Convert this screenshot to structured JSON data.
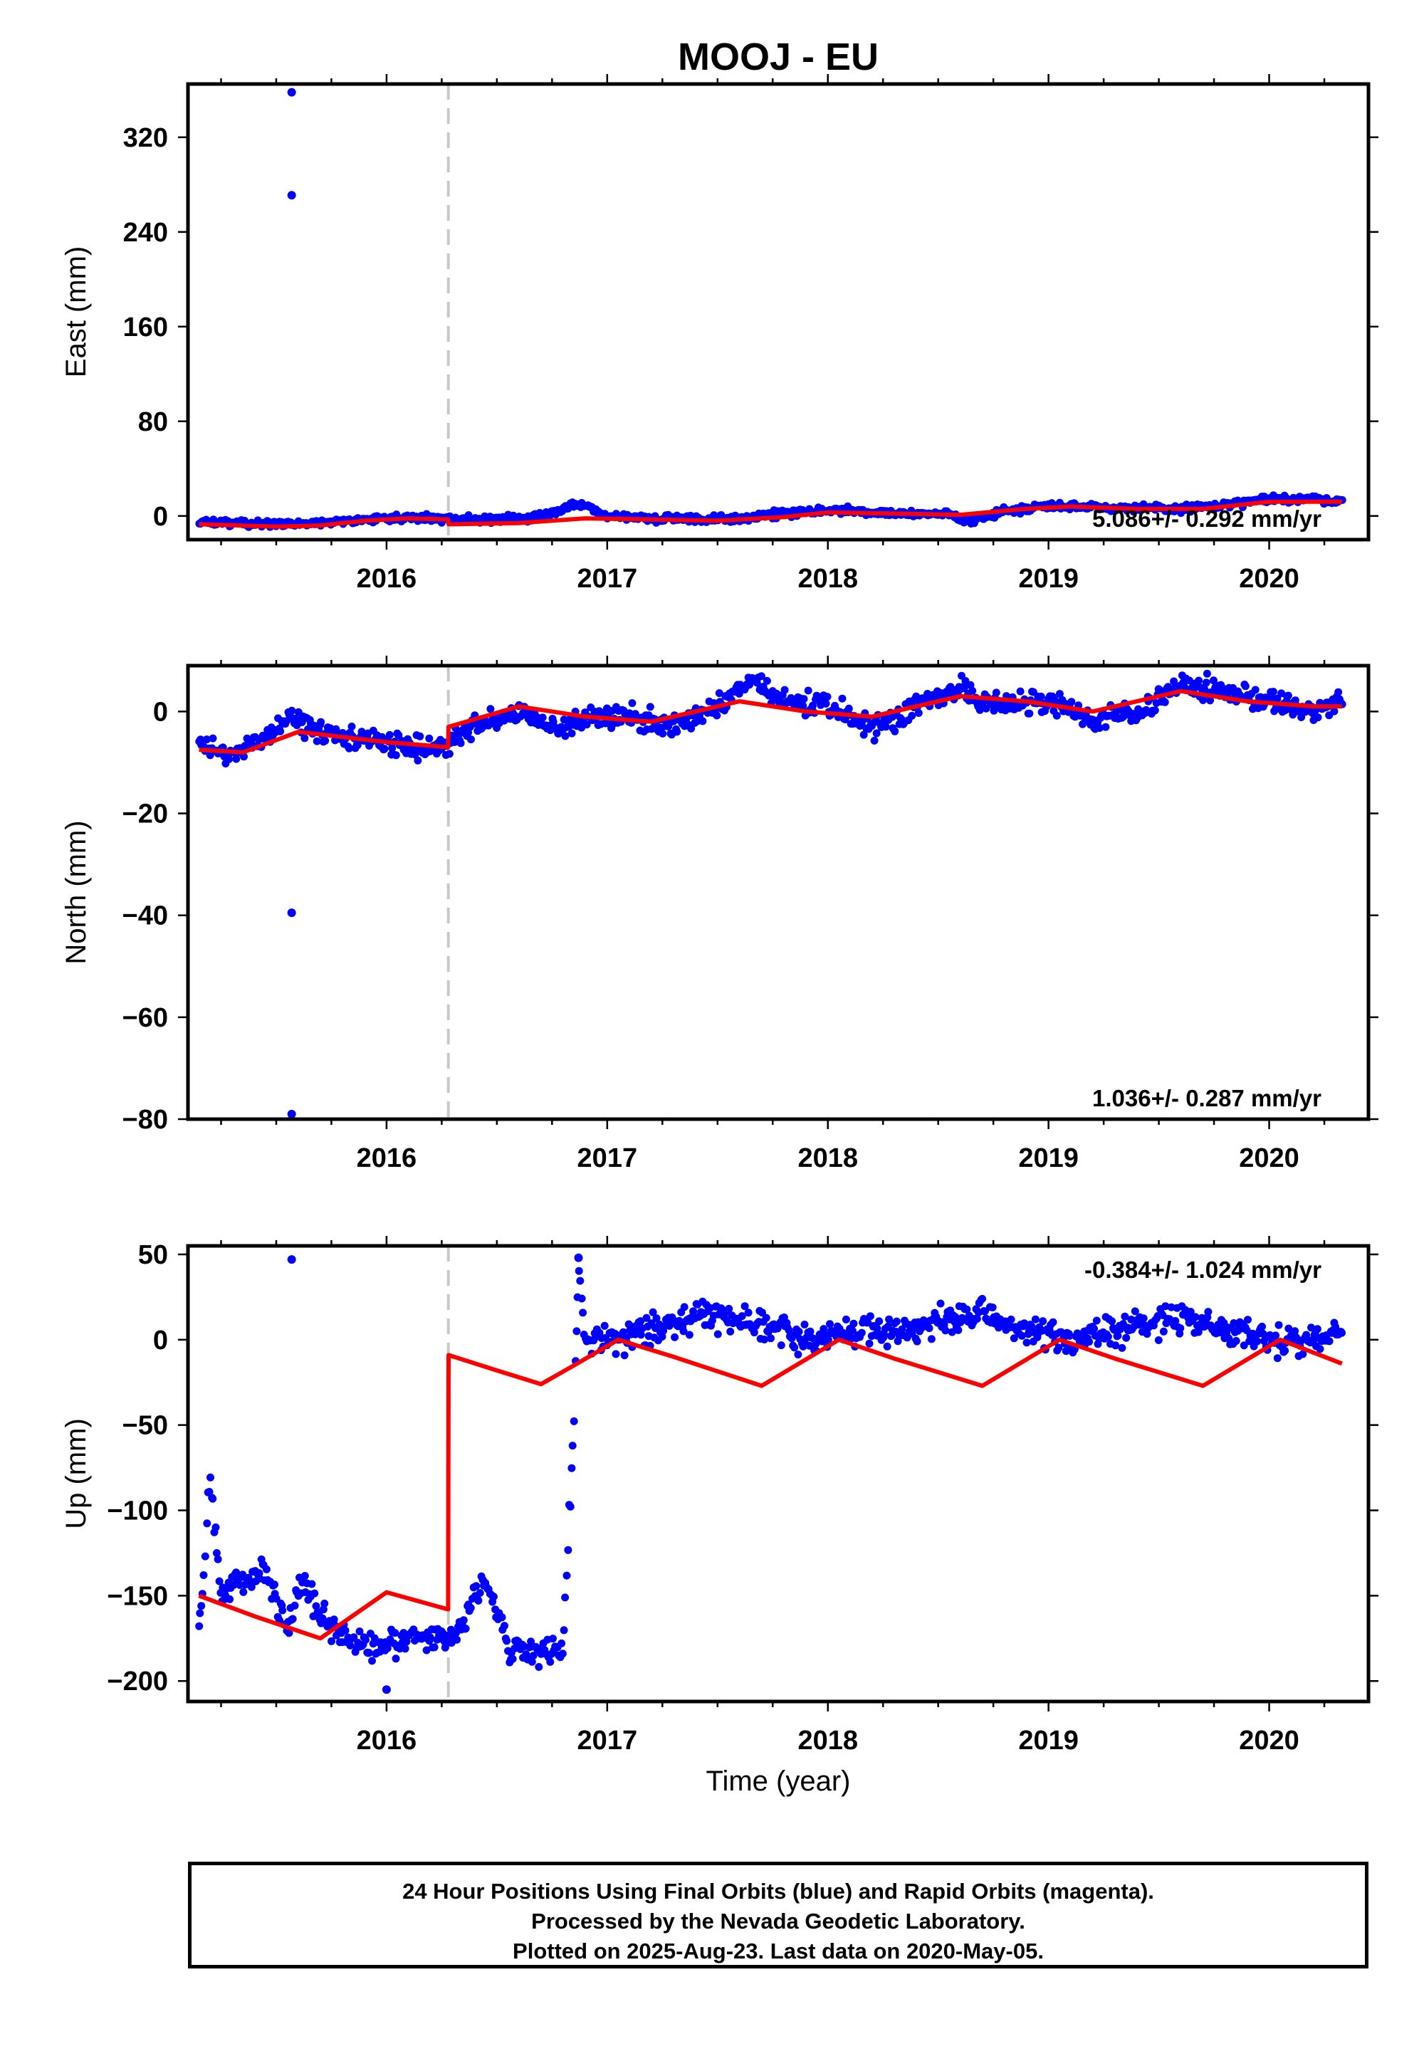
{
  "chart_data": [
    {
      "type": "scatter",
      "title": "MOOJ - EU",
      "ylabel": "East (mm)",
      "xlim": [
        2015.1,
        2020.45
      ],
      "ylim": [
        -20,
        365
      ],
      "xticks": [
        2016,
        2017,
        2018,
        2019,
        2020
      ],
      "yticks": [
        0,
        80,
        160,
        240,
        320
      ],
      "rate_label": "5.086+/- 0.292 mm/yr",
      "offset_x": 2016.28,
      "series": [
        {
          "color": "#0000ff",
          "x": [
            2015.15,
            2015.3,
            2015.5,
            2015.7,
            2015.9,
            2016.1,
            2016.25,
            2016.45,
            2016.65,
            2016.8,
            2016.84,
            2016.88,
            2017.0,
            2017.2,
            2017.4,
            2017.6,
            2017.8,
            2018.0,
            2018.15,
            2018.35,
            2018.55,
            2018.65,
            2018.8,
            2019.0,
            2019.2,
            2019.4,
            2019.6,
            2019.8,
            2020.0,
            2020.2,
            2020.33
          ],
          "y": [
            -5,
            -6,
            -7,
            -6,
            -3,
            -1,
            -2,
            -3,
            -2,
            5,
            10,
            10,
            0,
            -2,
            -3,
            -2,
            2,
            5,
            4,
            2,
            1,
            -4,
            4,
            9,
            8,
            6,
            6,
            9,
            14,
            15,
            12
          ]
        },
        {
          "color": "#0000ff",
          "x": [
            2015.57,
            2015.57
          ],
          "y": [
            358,
            271
          ]
        }
      ],
      "model": {
        "color": "#ff0000",
        "x": [
          2015.15,
          2015.5,
          2015.7,
          2015.9,
          2016.1,
          2016.279,
          2016.281,
          2016.6,
          2016.9,
          2017.2,
          2017.5,
          2017.8,
          2018.0,
          2018.3,
          2018.6,
          2018.9,
          2019.1,
          2019.4,
          2019.7,
          2020.0,
          2020.33
        ],
        "y": [
          -7,
          -9,
          -8,
          -4,
          -2,
          -3,
          -7,
          -6,
          -2,
          -3,
          -4,
          -1,
          3,
          2,
          1,
          6,
          8,
          6,
          6,
          12,
          12
        ]
      }
    },
    {
      "type": "scatter",
      "ylabel": "North (mm)",
      "xlim": [
        2015.1,
        2020.45
      ],
      "ylim": [
        -80,
        9
      ],
      "xticks": [
        2016,
        2017,
        2018,
        2019,
        2020
      ],
      "yticks": [
        0,
        -20,
        -40,
        -60,
        -80
      ],
      "rate_label": "1.036+/- 0.287 mm/yr",
      "offset_x": 2016.28,
      "series": [
        {
          "color": "#0000ff",
          "x": [
            2015.15,
            2015.3,
            2015.45,
            2015.55,
            2015.7,
            2015.9,
            2016.1,
            2016.25,
            2016.35,
            2016.5,
            2016.6,
            2016.8,
            2016.9,
            2017.1,
            2017.3,
            2017.5,
            2017.65,
            2017.8,
            2018.0,
            2018.2,
            2018.35,
            2018.6,
            2018.7,
            2018.9,
            2019.1,
            2019.2,
            2019.4,
            2019.6,
            2019.8,
            2020.0,
            2020.2,
            2020.33
          ],
          "y": [
            -6,
            -9,
            -5,
            -1,
            -4,
            -6,
            -7,
            -7,
            -4,
            -1,
            0,
            -4,
            -1,
            -1,
            -3,
            1,
            6,
            2,
            1,
            -3,
            0,
            5,
            1,
            2,
            1,
            -2,
            0,
            5,
            4,
            2,
            0,
            2
          ]
        },
        {
          "color": "#0000ff",
          "x": [
            2015.57,
            2015.57
          ],
          "y": [
            -39.5,
            -79
          ]
        }
      ],
      "model": {
        "color": "#ff0000",
        "x": [
          2015.15,
          2015.35,
          2015.6,
          2015.8,
          2016.0,
          2016.279,
          2016.281,
          2016.6,
          2016.9,
          2017.2,
          2017.6,
          2017.9,
          2018.2,
          2018.6,
          2018.9,
          2019.2,
          2019.6,
          2019.9,
          2020.2,
          2020.33
        ],
        "y": [
          -7.5,
          -8,
          -4,
          -5,
          -6,
          -7,
          -3,
          1,
          -1,
          -2,
          2,
          0,
          -1,
          3,
          2,
          0,
          4,
          2,
          1,
          1
        ]
      }
    },
    {
      "type": "scatter",
      "ylabel": "Up (mm)",
      "xlabel": "Time (year)",
      "xlim": [
        2015.1,
        2020.45
      ],
      "ylim": [
        -212,
        55
      ],
      "xticks": [
        2016,
        2017,
        2018,
        2019,
        2020
      ],
      "yticks": [
        50,
        0,
        -50,
        -100,
        -150,
        -200
      ],
      "rate_label": "-0.384+/- 1.024 mm/yr",
      "offset_x": 2016.28,
      "series": [
        {
          "color": "#0000ff",
          "x": [
            2015.15,
            2015.2,
            2015.25,
            2015.35,
            2015.45,
            2015.55,
            2015.6,
            2015.75,
            2015.9,
            2016.0,
            2016.1,
            2016.2,
            2016.3,
            2016.45,
            2016.55,
            2016.7,
            2016.8,
            2016.85,
            2016.87,
            2016.9,
            2017.0,
            2017.2,
            2017.4,
            2017.5,
            2017.7,
            2017.9,
            2018.1,
            2018.3,
            2018.5,
            2018.7,
            2018.9,
            2019.1,
            2019.3,
            2019.5,
            2019.6,
            2019.8,
            2020.0,
            2020.2,
            2020.33
          ],
          "y": [
            -175,
            -80,
            -150,
            -140,
            -135,
            -170,
            -140,
            -170,
            -180,
            -180,
            -175,
            -175,
            -175,
            -140,
            -180,
            -185,
            -180,
            -45,
            45,
            0,
            0,
            5,
            15,
            15,
            10,
            0,
            5,
            5,
            10,
            15,
            5,
            0,
            5,
            10,
            15,
            5,
            0,
            0,
            5
          ]
        },
        {
          "color": "#0000ff",
          "x": [
            2015.57,
            2016.0,
            2016.87
          ],
          "y": [
            47,
            -205,
            48
          ]
        }
      ],
      "model": {
        "color": "#ff0000",
        "x": [
          2015.15,
          2015.4,
          2015.7,
          2016.0,
          2016.279,
          2016.281,
          2016.5,
          2016.7,
          2016.85,
          2017.05,
          2017.3,
          2017.7,
          2018.05,
          2018.3,
          2018.7,
          2019.05,
          2019.3,
          2019.7,
          2020.05,
          2020.33
        ],
        "y": [
          -150,
          -162,
          -175,
          -148,
          -158,
          -9,
          -18,
          -26,
          -15,
          0,
          -10,
          -27,
          0,
          -11,
          -27,
          0,
          -11,
          -27,
          0,
          -14
        ]
      }
    }
  ],
  "footer": {
    "line1": "24 Hour Positions Using Final Orbits (blue) and Rapid Orbits (magenta).",
    "line2": "Processed by the Nevada Geodetic Laboratory.",
    "line3": "Plotted on 2025-Aug-23. Last data on 2020-May-05."
  }
}
